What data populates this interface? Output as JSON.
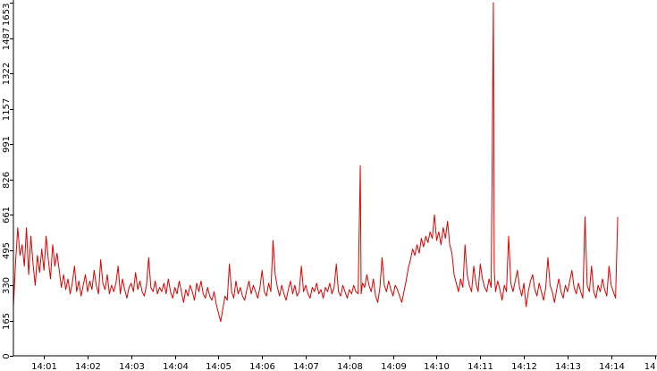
{
  "chart_data": {
    "type": "line",
    "title": "",
    "xlabel": "",
    "ylabel": "",
    "x_tick_labels": [
      "14:01",
      "14:02",
      "14:03",
      "14:04",
      "14:05",
      "14:06",
      "14:07",
      "14:08",
      "14:09",
      "14:10",
      "14:11",
      "14:12",
      "14:13",
      "14:14",
      "14"
    ],
    "x_tick_minutes": [
      1,
      2,
      3,
      4,
      5,
      6,
      7,
      8,
      9,
      10,
      11,
      12,
      13,
      14,
      15
    ],
    "xlim_minutes": [
      0.3,
      15.05
    ],
    "y_ticks": [
      0,
      165,
      330,
      495,
      661,
      826,
      991,
      1157,
      1322,
      1487,
      1653
    ],
    "ylim": [
      0,
      1653
    ],
    "grid": false,
    "legend": "none",
    "series": [
      {
        "color": "#e00000",
        "points": [
          [
            0.3,
            230
          ],
          [
            0.35,
            440
          ],
          [
            0.4,
            600
          ],
          [
            0.45,
            470
          ],
          [
            0.5,
            520
          ],
          [
            0.55,
            420
          ],
          [
            0.6,
            600
          ],
          [
            0.65,
            380
          ],
          [
            0.7,
            560
          ],
          [
            0.75,
            430
          ],
          [
            0.8,
            330
          ],
          [
            0.85,
            470
          ],
          [
            0.9,
            390
          ],
          [
            0.95,
            500
          ],
          [
            1.0,
            400
          ],
          [
            1.05,
            560
          ],
          [
            1.1,
            450
          ],
          [
            1.15,
            360
          ],
          [
            1.2,
            520
          ],
          [
            1.25,
            420
          ],
          [
            1.3,
            480
          ],
          [
            1.35,
            400
          ],
          [
            1.4,
            320
          ],
          [
            1.45,
            380
          ],
          [
            1.5,
            310
          ],
          [
            1.55,
            360
          ],
          [
            1.6,
            290
          ],
          [
            1.65,
            340
          ],
          [
            1.7,
            420
          ],
          [
            1.75,
            300
          ],
          [
            1.8,
            350
          ],
          [
            1.85,
            280
          ],
          [
            1.9,
            330
          ],
          [
            1.95,
            380
          ],
          [
            2.0,
            300
          ],
          [
            2.05,
            350
          ],
          [
            2.1,
            310
          ],
          [
            2.15,
            400
          ],
          [
            2.2,
            330
          ],
          [
            2.25,
            290
          ],
          [
            2.3,
            450
          ],
          [
            2.35,
            340
          ],
          [
            2.4,
            310
          ],
          [
            2.45,
            380
          ],
          [
            2.5,
            290
          ],
          [
            2.55,
            330
          ],
          [
            2.6,
            300
          ],
          [
            2.65,
            340
          ],
          [
            2.7,
            420
          ],
          [
            2.75,
            290
          ],
          [
            2.8,
            360
          ],
          [
            2.85,
            310
          ],
          [
            2.9,
            270
          ],
          [
            2.95,
            320
          ],
          [
            3.0,
            340
          ],
          [
            3.05,
            300
          ],
          [
            3.1,
            390
          ],
          [
            3.15,
            310
          ],
          [
            3.2,
            350
          ],
          [
            3.25,
            300
          ],
          [
            3.3,
            280
          ],
          [
            3.35,
            330
          ],
          [
            3.4,
            460
          ],
          [
            3.45,
            320
          ],
          [
            3.5,
            300
          ],
          [
            3.55,
            350
          ],
          [
            3.6,
            290
          ],
          [
            3.65,
            320
          ],
          [
            3.7,
            300
          ],
          [
            3.75,
            340
          ],
          [
            3.8,
            290
          ],
          [
            3.85,
            360
          ],
          [
            3.9,
            300
          ],
          [
            3.95,
            270
          ],
          [
            4.0,
            320
          ],
          [
            4.05,
            290
          ],
          [
            4.1,
            350
          ],
          [
            4.15,
            300
          ],
          [
            4.2,
            250
          ],
          [
            4.25,
            310
          ],
          [
            4.3,
            280
          ],
          [
            4.35,
            330
          ],
          [
            4.4,
            300
          ],
          [
            4.45,
            260
          ],
          [
            4.5,
            340
          ],
          [
            4.55,
            300
          ],
          [
            4.6,
            350
          ],
          [
            4.65,
            290
          ],
          [
            4.7,
            270
          ],
          [
            4.75,
            320
          ],
          [
            4.8,
            280
          ],
          [
            4.85,
            260
          ],
          [
            4.9,
            300
          ],
          [
            4.95,
            240
          ],
          [
            5.0,
            200
          ],
          [
            5.05,
            160
          ],
          [
            5.1,
            220
          ],
          [
            5.15,
            280
          ],
          [
            5.2,
            260
          ],
          [
            5.25,
            430
          ],
          [
            5.3,
            300
          ],
          [
            5.35,
            270
          ],
          [
            5.4,
            350
          ],
          [
            5.45,
            290
          ],
          [
            5.5,
            320
          ],
          [
            5.55,
            280
          ],
          [
            5.6,
            260
          ],
          [
            5.65,
            310
          ],
          [
            5.7,
            350
          ],
          [
            5.75,
            290
          ],
          [
            5.8,
            330
          ],
          [
            5.85,
            300
          ],
          [
            5.9,
            270
          ],
          [
            5.95,
            320
          ],
          [
            6.0,
            400
          ],
          [
            6.05,
            300
          ],
          [
            6.1,
            280
          ],
          [
            6.15,
            340
          ],
          [
            6.2,
            300
          ],
          [
            6.25,
            540
          ],
          [
            6.3,
            380
          ],
          [
            6.35,
            320
          ],
          [
            6.4,
            280
          ],
          [
            6.45,
            330
          ],
          [
            6.5,
            290
          ],
          [
            6.55,
            260
          ],
          [
            6.6,
            310
          ],
          [
            6.65,
            350
          ],
          [
            6.7,
            290
          ],
          [
            6.75,
            330
          ],
          [
            6.8,
            280
          ],
          [
            6.85,
            300
          ],
          [
            6.9,
            420
          ],
          [
            6.95,
            300
          ],
          [
            7.0,
            330
          ],
          [
            7.05,
            290
          ],
          [
            7.1,
            270
          ],
          [
            7.15,
            320
          ],
          [
            7.2,
            300
          ],
          [
            7.25,
            340
          ],
          [
            7.3,
            290
          ],
          [
            7.35,
            310
          ],
          [
            7.4,
            270
          ],
          [
            7.45,
            320
          ],
          [
            7.5,
            300
          ],
          [
            7.55,
            340
          ],
          [
            7.6,
            290
          ],
          [
            7.65,
            320
          ],
          [
            7.7,
            430
          ],
          [
            7.75,
            300
          ],
          [
            7.8,
            280
          ],
          [
            7.85,
            330
          ],
          [
            7.9,
            300
          ],
          [
            7.95,
            270
          ],
          [
            8.0,
            310
          ],
          [
            8.05,
            290
          ],
          [
            8.1,
            330
          ],
          [
            8.15,
            300
          ],
          [
            8.2,
            290
          ],
          [
            8.25,
            890
          ],
          [
            8.27,
            290
          ],
          [
            8.3,
            340
          ],
          [
            8.35,
            320
          ],
          [
            8.4,
            380
          ],
          [
            8.45,
            330
          ],
          [
            8.5,
            300
          ],
          [
            8.55,
            360
          ],
          [
            8.6,
            280
          ],
          [
            8.65,
            250
          ],
          [
            8.7,
            320
          ],
          [
            8.75,
            460
          ],
          [
            8.8,
            330
          ],
          [
            8.85,
            300
          ],
          [
            8.9,
            350
          ],
          [
            8.95,
            310
          ],
          [
            9.0,
            280
          ],
          [
            9.05,
            330
          ],
          [
            9.1,
            310
          ],
          [
            9.15,
            280
          ],
          [
            9.2,
            250
          ],
          [
            9.25,
            300
          ],
          [
            9.3,
            350
          ],
          [
            9.35,
            410
          ],
          [
            9.4,
            450
          ],
          [
            9.45,
            500
          ],
          [
            9.5,
            470
          ],
          [
            9.55,
            520
          ],
          [
            9.6,
            480
          ],
          [
            9.65,
            550
          ],
          [
            9.7,
            510
          ],
          [
            9.75,
            560
          ],
          [
            9.8,
            530
          ],
          [
            9.85,
            580
          ],
          [
            9.9,
            550
          ],
          [
            9.95,
            660
          ],
          [
            10.0,
            540
          ],
          [
            10.05,
            580
          ],
          [
            10.1,
            520
          ],
          [
            10.15,
            600
          ],
          [
            10.2,
            550
          ],
          [
            10.25,
            630
          ],
          [
            10.3,
            520
          ],
          [
            10.35,
            480
          ],
          [
            10.4,
            380
          ],
          [
            10.45,
            340
          ],
          [
            10.5,
            300
          ],
          [
            10.55,
            360
          ],
          [
            10.6,
            320
          ],
          [
            10.65,
            520
          ],
          [
            10.7,
            380
          ],
          [
            10.75,
            330
          ],
          [
            10.8,
            300
          ],
          [
            10.85,
            420
          ],
          [
            10.9,
            340
          ],
          [
            10.95,
            300
          ],
          [
            11.0,
            430
          ],
          [
            11.05,
            360
          ],
          [
            11.1,
            320
          ],
          [
            11.15,
            300
          ],
          [
            11.2,
            360
          ],
          [
            11.25,
            320
          ],
          [
            11.3,
            1660
          ],
          [
            11.32,
            400
          ],
          [
            11.35,
            300
          ],
          [
            11.4,
            350
          ],
          [
            11.45,
            310
          ],
          [
            11.5,
            260
          ],
          [
            11.55,
            330
          ],
          [
            11.6,
            300
          ],
          [
            11.65,
            560
          ],
          [
            11.7,
            340
          ],
          [
            11.75,
            300
          ],
          [
            11.8,
            350
          ],
          [
            11.85,
            400
          ],
          [
            11.9,
            320
          ],
          [
            11.95,
            280
          ],
          [
            12.0,
            340
          ],
          [
            12.05,
            230
          ],
          [
            12.1,
            300
          ],
          [
            12.15,
            350
          ],
          [
            12.2,
            380
          ],
          [
            12.25,
            310
          ],
          [
            12.3,
            280
          ],
          [
            12.35,
            340
          ],
          [
            12.4,
            300
          ],
          [
            12.45,
            260
          ],
          [
            12.5,
            320
          ],
          [
            12.55,
            460
          ],
          [
            12.6,
            330
          ],
          [
            12.65,
            300
          ],
          [
            12.7,
            250
          ],
          [
            12.75,
            310
          ],
          [
            12.8,
            360
          ],
          [
            12.85,
            300
          ],
          [
            12.9,
            270
          ],
          [
            12.95,
            330
          ],
          [
            13.0,
            300
          ],
          [
            13.05,
            350
          ],
          [
            13.1,
            400
          ],
          [
            13.15,
            320
          ],
          [
            13.2,
            290
          ],
          [
            13.25,
            340
          ],
          [
            13.3,
            300
          ],
          [
            13.35,
            270
          ],
          [
            13.4,
            650
          ],
          [
            13.45,
            330
          ],
          [
            13.5,
            300
          ],
          [
            13.55,
            420
          ],
          [
            13.6,
            300
          ],
          [
            13.65,
            270
          ],
          [
            13.7,
            330
          ],
          [
            13.75,
            300
          ],
          [
            13.8,
            360
          ],
          [
            13.85,
            310
          ],
          [
            13.9,
            280
          ],
          [
            13.95,
            420
          ],
          [
            14.0,
            330
          ],
          [
            14.05,
            300
          ],
          [
            14.1,
            270
          ],
          [
            14.15,
            650
          ]
        ]
      }
    ]
  }
}
